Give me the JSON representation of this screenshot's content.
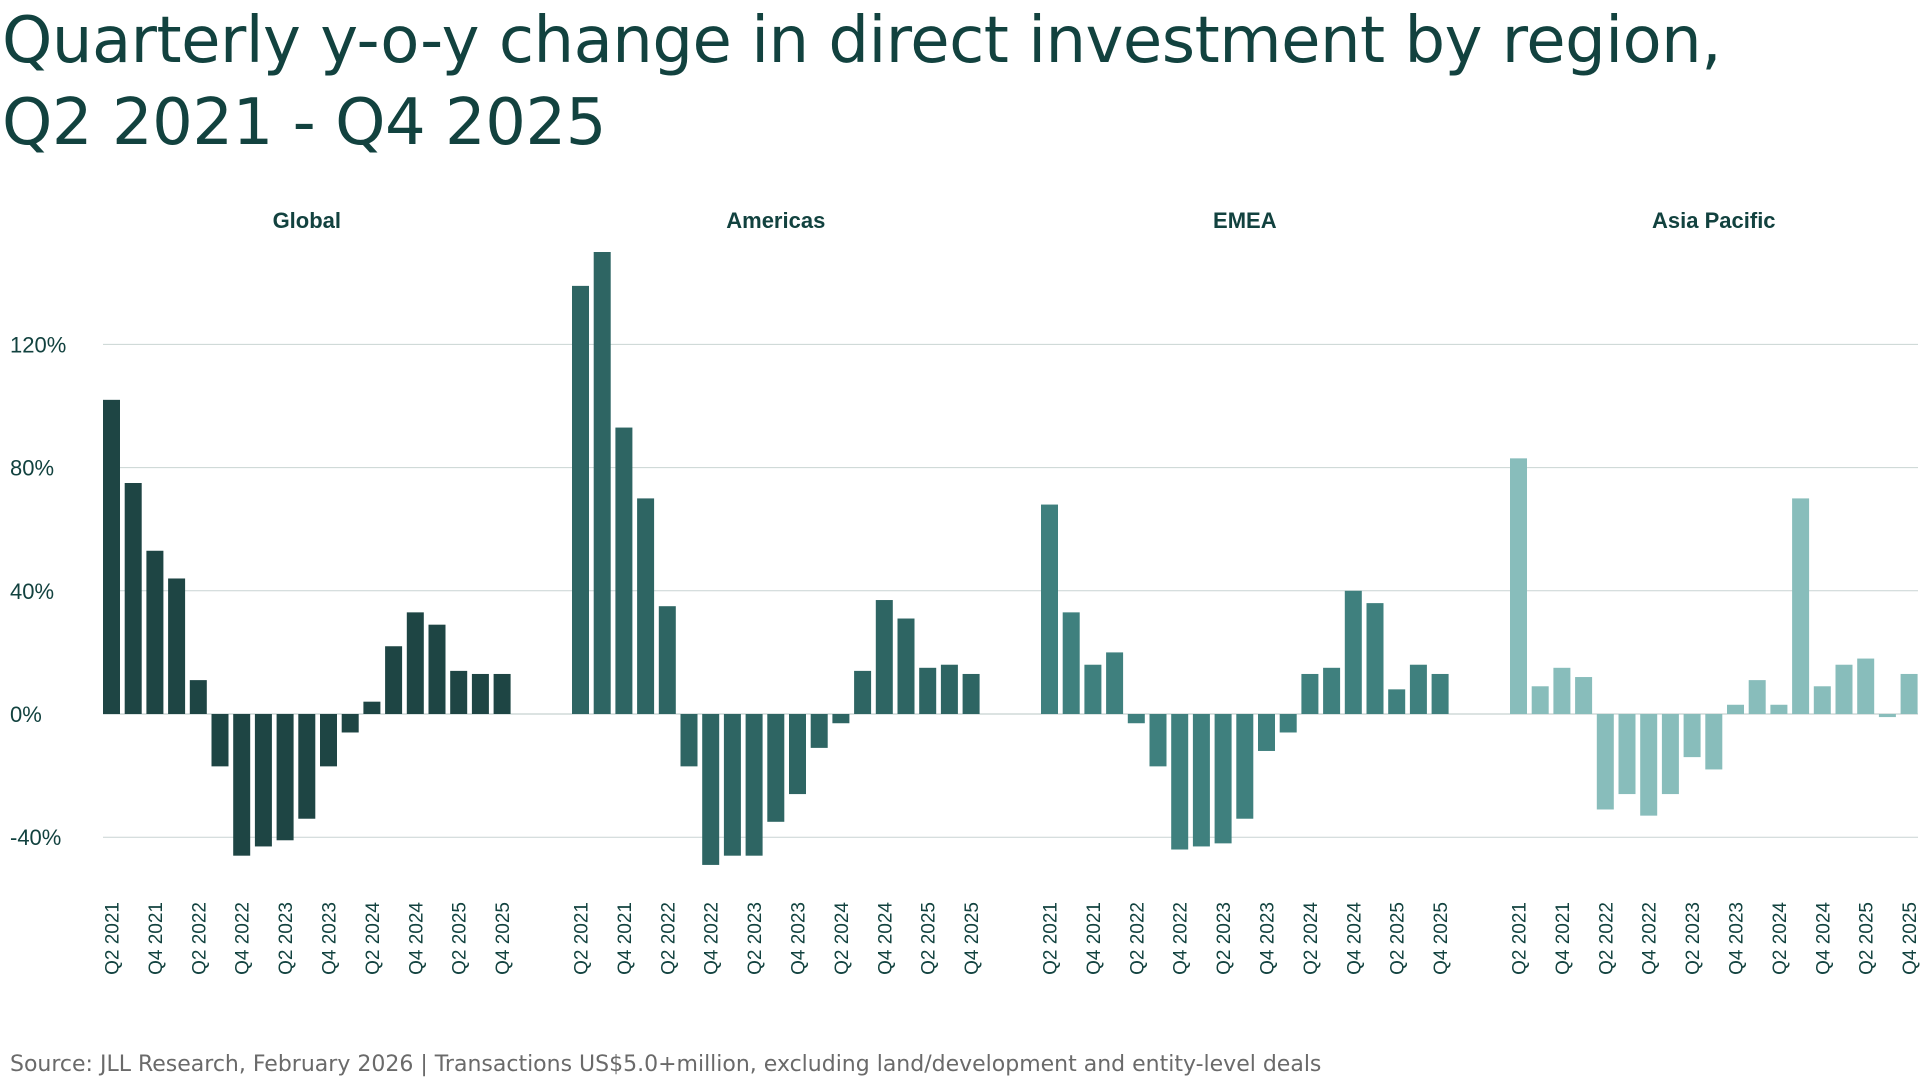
{
  "title_line1": "Quarterly y-o-y change in direct investment by region,",
  "title_line2": "Q2 2021 - Q4 2025",
  "source": "Source: JLL Research, February 2026  |  Transactions US$5.0+million, excluding land/development and entity-level deals",
  "chart_data": {
    "type": "bar",
    "grid": true,
    "ylim": [
      -48,
      150
    ],
    "yticks": [
      -40,
      0,
      40,
      80,
      120
    ],
    "ytick_labels": [
      "-40%",
      "0%",
      "40%",
      "80%",
      "120%"
    ],
    "categories": [
      "Q2 2021",
      "Q3 2021",
      "Q4 2021",
      "Q1 2022",
      "Q2 2022",
      "Q3 2022",
      "Q4 2022",
      "Q1 2023",
      "Q2 2023",
      "Q3 2023",
      "Q4 2023",
      "Q1 2024",
      "Q2 2024",
      "Q3 2024",
      "Q4 2024",
      "Q1 2025",
      "Q2 2025",
      "Q3 2025",
      "Q4 2025"
    ],
    "xtick_labels": [
      "Q2 2021",
      "",
      "Q4 2021",
      "",
      "Q2 2022",
      "",
      "Q4 2022",
      "",
      "Q2 2023",
      "",
      "Q4 2023",
      "",
      "Q2 2024",
      "",
      "Q4 2024",
      "",
      "Q2 2025",
      "",
      "Q4 2025"
    ],
    "series": [
      {
        "name": "Global",
        "color": "#1e4544",
        "values": [
          102,
          75,
          53,
          44,
          11,
          -17,
          -46,
          -43,
          -41,
          -34,
          -17,
          -6,
          4,
          22,
          33,
          29,
          14,
          13,
          13
        ]
      },
      {
        "name": "Americas",
        "color": "#2e6563",
        "values": [
          139,
          150,
          93,
          70,
          35,
          -17,
          -49,
          -46,
          -46,
          -35,
          -26,
          -11,
          -3,
          14,
          37,
          31,
          15,
          16,
          13
        ]
      },
      {
        "name": "EMEA",
        "color": "#3f807e",
        "values": [
          68,
          33,
          16,
          20,
          -3,
          -17,
          -44,
          -43,
          -42,
          -34,
          -12,
          -6,
          13,
          15,
          40,
          36,
          8,
          16,
          13
        ]
      },
      {
        "name": "Asia Pacific",
        "color": "#88bdbb",
        "values": [
          83,
          9,
          15,
          12,
          -31,
          -26,
          -33,
          -26,
          -14,
          -18,
          3,
          11,
          3,
          70,
          9,
          16,
          18,
          -1,
          13
        ]
      }
    ]
  }
}
